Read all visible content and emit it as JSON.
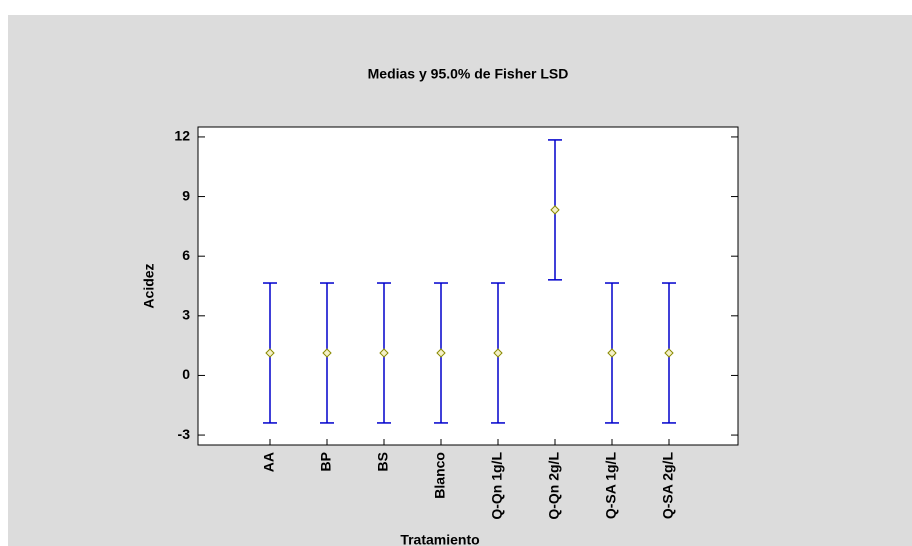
{
  "chart_data": {
    "type": "means_errorbar",
    "title": "Medias y 95.0% de Fisher LSD",
    "x_label": "Tratamiento",
    "y_label": "Acidez",
    "categories": [
      "AA",
      "BP",
      "BS",
      "Blanco",
      "Q-Qn 1g/L",
      "Q-Qn 2g/L",
      "Q-SA 1g/L",
      "Q-SA 2g/L"
    ],
    "values": [
      1.13,
      1.13,
      1.13,
      1.13,
      1.13,
      8.33,
      1.13,
      1.13
    ],
    "error": [
      3.52,
      3.52,
      3.52,
      3.52,
      3.52,
      3.52,
      3.52,
      3.52
    ],
    "color": "#0000cc",
    "marker_color": "#8a8a00",
    "ylim": [
      -3.5,
      12.5
    ],
    "yticks": [
      -3,
      0,
      3,
      6,
      9,
      12
    ]
  }
}
